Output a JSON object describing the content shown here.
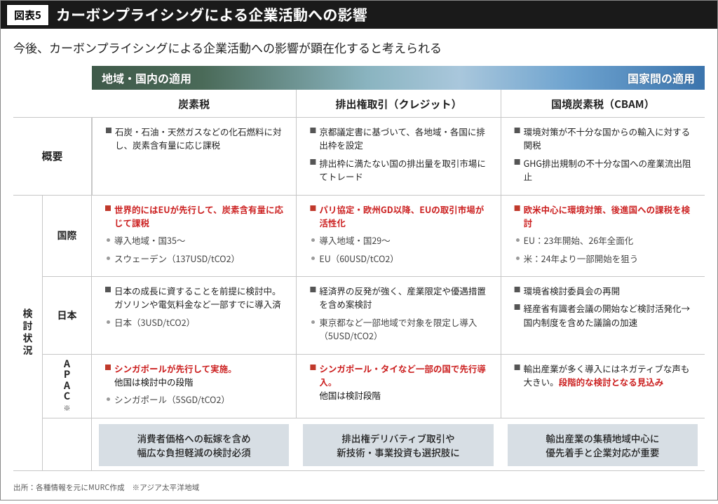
{
  "figure_label": "図表5",
  "title": "カーボンプライシングによる企業活動への影響",
  "lead": "今後、カーボンプライシングによる企業活動への影響が顕在化すると考えられる",
  "scope": {
    "left": "地域・国内の適用",
    "right": "国家間の適用"
  },
  "columns": {
    "c1": "炭素税",
    "c2": "排出権取引（クレジット）",
    "c3": "国境炭素税（CBAM）"
  },
  "rows": {
    "overview_label": "概要",
    "status_label": "検討状況",
    "intl_label": "国際",
    "jp_label": "日本",
    "apac_label": "APAC",
    "apac_note": "※"
  },
  "overview": {
    "c1": {
      "i1": "石炭・石油・天然ガスなどの化石燃料に対し、炭素含有量に応じ課税"
    },
    "c2": {
      "i1": "京都議定書に基づいて、各地域・各国に排出枠を設定",
      "i2": "排出枠に満たない国の排出量を取引市場にてトレード"
    },
    "c3": {
      "i1": "環境対策が不十分な国からの輸入に対する関税",
      "i2": "GHG排出規制の不十分な国への産業流出阻止"
    }
  },
  "intl": {
    "c1": {
      "h": "世界的にはEUが先行して、炭素含有量に応じて課税",
      "d1": "導入地域・国35～",
      "d2": "スウェーデン（137USD/tCO2）"
    },
    "c2": {
      "h": "パリ協定・欧州GD以降、EUの取引市場が活性化",
      "d1": "導入地域・国29～",
      "d2": "EU（60USD/tCO2）"
    },
    "c3": {
      "h": "欧米中心に環境対策、後進国への課税を検討",
      "d1": "EU：23年開始、26年全面化",
      "d2": "米：24年より一部開始を狙う"
    }
  },
  "jp": {
    "c1": {
      "i1": "日本の成長に資することを前提に検討中。ガソリンや電気料金など一部すでに導入済",
      "d1": "日本（3USD/tCO2）"
    },
    "c2": {
      "i1": "経済界の反発が強く、産業限定や優遇措置を含め案検討",
      "d1": "東京都など一部地域で対象を限定し導入（5USD/tCO2）"
    },
    "c3": {
      "i1": "環境省検討委員会の再開",
      "i2": "経産省有識者会議の開始など検討活発化→国内制度を含めた議論の加速"
    }
  },
  "apac": {
    "c1": {
      "h": "シンガポールが先行して実施。",
      "s": "他国は検討中の段階",
      "d1": "シンガポール（5SGD/tCO2）"
    },
    "c2": {
      "h": "シンガポール・タイなど一部の国で先行導入。",
      "s": "他国は検討段階"
    },
    "c3": {
      "i1a": "輸出産業が多く導入にはネガティブな声も大きい。",
      "i1b": "段階的な検討となる見込み"
    }
  },
  "slabs": {
    "s1": "消費者価格への転嫁を含め\n幅広な負担軽減の検討必須",
    "s2": "排出権デリバティブ取引や\n新技術・事業投資も選択肢に",
    "s3": "輸出産業の集積地域中心に\n優先着手と企業対応が重要"
  },
  "source": "出所：各種情報を元にMURC作成　※アジア太平洋地域",
  "colors": {
    "title_bg": "#1a1a1a",
    "gradient_from": "#3f5a4a",
    "gradient_to": "#3b74ad",
    "highlight": "#c22",
    "slab_bg": "#d7dee4",
    "border": "#c7c7c7"
  }
}
